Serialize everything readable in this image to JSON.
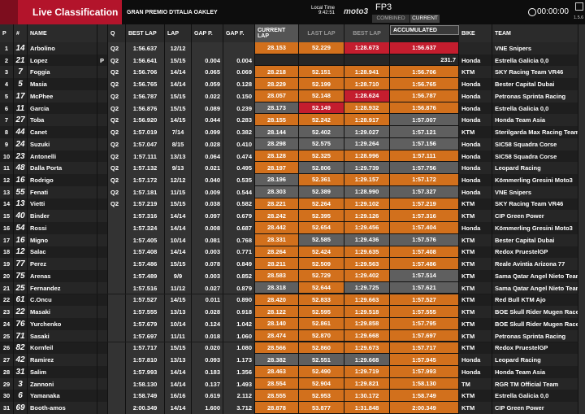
{
  "header": {
    "title": "Live Classification",
    "event": "GRAN PREMIO D'ITALIA OAKLEY",
    "local_time_label": "Local Time",
    "local_time": "9:42:51",
    "logo": "moto3",
    "session": "FP3",
    "tabs": [
      "COMBINED",
      "CURRENT"
    ],
    "clock": "00:00:00",
    "version": "1.5.6"
  },
  "table": {
    "columns": [
      "P",
      "#",
      "NAME",
      "",
      "Q",
      "BEST LAP",
      "LAP",
      "GAP P.",
      "GAP F.",
      "CURRENT LAP",
      "LAST LAP",
      "BEST LAP",
      "ACCUMULATED",
      "BIKE",
      "TEAM"
    ],
    "rows": [
      [
        "1",
        "14",
        "Arbolino",
        null,
        "Q2",
        "1:56.637",
        "12/12",
        null,
        null,
        "28.153",
        "52.229",
        "1:28.673",
        "1:56.637",
        null,
        "VNE Snipers"
      ],
      [
        "2",
        "21",
        "Lopez",
        "P",
        "Q2",
        "1:56.641",
        "15/15",
        "0.004",
        "0.004",
        null,
        null,
        null,
        "231.7",
        "Honda",
        "Estrella Galicia 0,0"
      ],
      [
        "3",
        "7",
        "Foggia",
        null,
        "Q2",
        "1:56.706",
        "14/14",
        "0.065",
        "0.069",
        "28.218",
        "52.151",
        "1:28.941",
        "1:56.706",
        "KTM",
        "SKY Racing Team VR46"
      ],
      [
        "4",
        "5",
        "Masia",
        null,
        "Q2",
        "1:56.765",
        "14/14",
        "0.059",
        "0.128",
        "28.229",
        "52.199",
        "1:28.710",
        "1:56.765",
        "Honda",
        "Bester Capital Dubai"
      ],
      [
        "5",
        "17",
        "McPhee",
        null,
        "Q2",
        "1:56.787",
        "15/15",
        "0.022",
        "0.150",
        "28.057",
        "52.148",
        "1:28.624",
        "1:56.787",
        "Honda",
        "Petronas Sprinta Racing"
      ],
      [
        "6",
        "11",
        "Garcia",
        null,
        "Q2",
        "1:56.876",
        "15/15",
        "0.089",
        "0.239",
        "28.173",
        "52.149",
        "1:28.932",
        "1:56.876",
        "Honda",
        "Estrella Galicia 0,0"
      ],
      [
        "7",
        "27",
        "Toba",
        null,
        "Q2",
        "1:56.920",
        "14/15",
        "0.044",
        "0.283",
        "28.155",
        "52.242",
        "1:28.917",
        "1:57.007",
        "Honda",
        "Honda Team Asia"
      ],
      [
        "8",
        "44",
        "Canet",
        null,
        "Q2",
        "1:57.019",
        "7/14",
        "0.099",
        "0.382",
        "28.144",
        "52.402",
        "1:29.027",
        "1:57.121",
        "KTM",
        "Sterilgarda Max Racing Team"
      ],
      [
        "9",
        "24",
        "Suzuki",
        null,
        "Q2",
        "1:57.047",
        "8/15",
        "0.028",
        "0.410",
        "28.298",
        "52.575",
        "1:29.264",
        "1:57.156",
        "Honda",
        "SIC58 Squadra Corse"
      ],
      [
        "10",
        "23",
        "Antonelli",
        null,
        "Q2",
        "1:57.111",
        "13/13",
        "0.064",
        "0.474",
        "28.128",
        "52.325",
        "1:28.996",
        "1:57.111",
        "Honda",
        "SIC58 Squadra Corse"
      ],
      [
        "11",
        "48",
        "Dalla Porta",
        null,
        "Q2",
        "1:57.132",
        "9/13",
        "0.021",
        "0.495",
        "28.197",
        "52.806",
        "1:29.739",
        "1:57.756",
        "Honda",
        "Leopard Racing"
      ],
      [
        "12",
        "16",
        "Rodrigo",
        null,
        "Q2",
        "1:57.172",
        "12/12",
        "0.040",
        "0.535",
        "28.196",
        "52.361",
        "1:29.157",
        "1:57.172",
        "Honda",
        "Kömmerling Gresini Moto3"
      ],
      [
        "13",
        "55",
        "Fenati",
        null,
        "Q2",
        "1:57.181",
        "11/15",
        "0.009",
        "0.544",
        "28.303",
        "52.389",
        "1:28.990",
        "1:57.327",
        "Honda",
        "VNE Snipers"
      ],
      [
        "14",
        "13",
        "Vietti",
        null,
        "Q2",
        "1:57.219",
        "15/15",
        "0.038",
        "0.582",
        "28.221",
        "52.264",
        "1:29.102",
        "1:57.219",
        "KTM",
        "SKY Racing Team VR46"
      ],
      [
        "15",
        "40",
        "Binder",
        null,
        null,
        "1:57.316",
        "14/14",
        "0.097",
        "0.679",
        "28.242",
        "52.395",
        "1:29.126",
        "1:57.316",
        "KTM",
        "CIP Green Power"
      ],
      [
        "16",
        "54",
        "Rossi",
        null,
        null,
        "1:57.324",
        "14/14",
        "0.008",
        "0.687",
        "28.442",
        "52.654",
        "1:29.456",
        "1:57.404",
        "Honda",
        "Kömmerling Gresini Moto3"
      ],
      [
        "17",
        "16",
        "Migno",
        null,
        null,
        "1:57.405",
        "10/14",
        "0.081",
        "0.768",
        "28.331",
        "52.585",
        "1:29.436",
        "1:57.576",
        "KTM",
        "Bester Capital Dubai"
      ],
      [
        "18",
        "12",
        "Salac",
        null,
        null,
        "1:57.408",
        "14/14",
        "0.003",
        "0.771",
        "28.264",
        "52.424",
        "1:29.635",
        "1:57.408",
        "KTM",
        "Redox PruestelGP"
      ],
      [
        "19",
        "77",
        "Perez",
        null,
        null,
        "1:57.486",
        "15/15",
        "0.078",
        "0.849",
        "28.211",
        "52.509",
        "1:29.563",
        "1:57.486",
        "KTM",
        "Reale Avintia Arizona 77"
      ],
      [
        "20",
        "75",
        "Arenas",
        null,
        null,
        "1:57.489",
        "9/9",
        "0.003",
        "0.852",
        "28.583",
        "52.729",
        "1:29.402",
        "1:57.514",
        "KTM",
        "Sama Qatar Angel Nieto Team"
      ],
      [
        "21",
        "25",
        "Fernandez",
        null,
        null,
        "1:57.516",
        "11/12",
        "0.027",
        "0.879",
        "28.318",
        "52.644",
        "1:29.725",
        "1:57.621",
        "KTM",
        "Sama Qatar Angel Nieto Team"
      ],
      [
        "22",
        "61",
        "C.Oncu",
        null,
        null,
        "1:57.527",
        "14/15",
        "0.011",
        "0.890",
        "28.420",
        "52.833",
        "1:29.663",
        "1:57.527",
        "KTM",
        "Red Bull KTM Ajo"
      ],
      [
        "23",
        "22",
        "Masaki",
        null,
        null,
        "1:57.555",
        "13/13",
        "0.028",
        "0.918",
        "28.122",
        "52.595",
        "1:29.518",
        "1:57.555",
        "KTM",
        "BOE Skull Rider Mugen Race"
      ],
      [
        "24",
        "76",
        "Yurchenko",
        null,
        null,
        "1:57.679",
        "10/14",
        "0.124",
        "1.042",
        "28.140",
        "52.861",
        "1:29.858",
        "1:57.795",
        "KTM",
        "BOE Skull Rider Mugen Race"
      ],
      [
        "25",
        "71",
        "Sasaki",
        null,
        null,
        "1:57.697",
        "11/11",
        "0.018",
        "1.060",
        "28.474",
        "52.870",
        "1:29.668",
        "1:57.697",
        "KTM",
        "Petronas Sprinta Racing"
      ],
      [
        "26",
        "82",
        "Kornfeil",
        null,
        null,
        "1:57.717",
        "15/15",
        "0.020",
        "1.080",
        "28.566",
        "52.860",
        "1:29.673",
        "1:57.717",
        "KTM",
        "Redox PruestelGP"
      ],
      [
        "27",
        "42",
        "Ramirez",
        null,
        null,
        "1:57.810",
        "13/13",
        "0.093",
        "1.173",
        "28.382",
        "52.551",
        "1:29.668",
        "1:57.945",
        "Honda",
        "Leopard Racing"
      ],
      [
        "28",
        "31",
        "Salim",
        null,
        null,
        "1:57.993",
        "14/14",
        "0.183",
        "1.356",
        "28.463",
        "52.490",
        "1:29.719",
        "1:57.993",
        "Honda",
        "Honda Team Asia"
      ],
      [
        "29",
        "3",
        "Zannoni",
        null,
        null,
        "1:58.130",
        "14/14",
        "0.137",
        "1.493",
        "28.554",
        "52.904",
        "1:29.821",
        "1:58.130",
        "TM",
        "RGR TM Official Team"
      ],
      [
        "30",
        "6",
        "Yamanaka",
        null,
        null,
        "1:58.749",
        "16/16",
        "0.619",
        "2.112",
        "28.555",
        "52.953",
        "1:30.172",
        "1:58.749",
        "KTM",
        "Estrella Galicia 0,0"
      ],
      [
        "31",
        "69",
        "Booth-amos",
        null,
        null,
        "2:00.349",
        "14/14",
        "1.600",
        "3.712",
        "28.878",
        "53.877",
        "1:31.848",
        "2:00.349",
        "KTM",
        "CIP Green Power"
      ]
    ]
  }
}
